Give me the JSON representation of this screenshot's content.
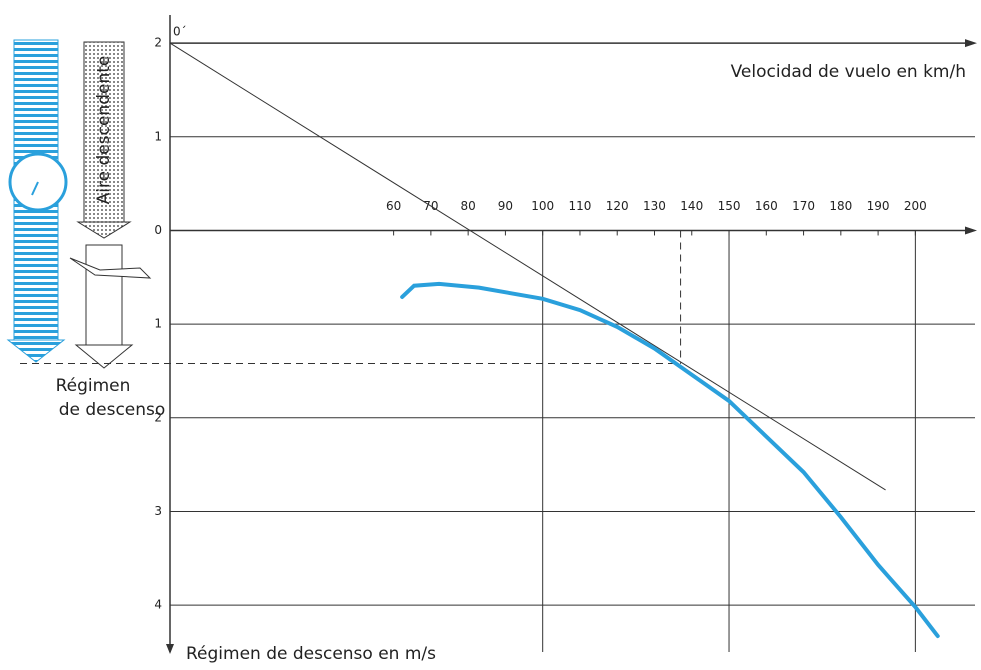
{
  "chart_data": {
    "type": "line",
    "x_label": "Velocidad de vuelo en km/h",
    "y_label": "Régimen de descenso en m/s",
    "origin_label": "0´",
    "air_label": "Aire descendente",
    "sink_label": [
      "Régimen",
      "de descenso"
    ],
    "x": [
      62.3,
      65.5,
      72.2,
      82.9,
      100,
      110,
      120,
      130,
      140,
      150,
      160,
      170,
      180,
      190,
      200,
      206
    ],
    "series": [
      {
        "color": "#2aa0dc",
        "values": [
          0.71,
          0.59,
          0.57,
          0.61,
          0.73,
          0.85,
          1.03,
          1.26,
          1.54,
          1.82,
          2.2,
          2.58,
          3.06,
          3.57,
          4.02,
          4.33
        ]
      }
    ],
    "tangent": {
      "x": [
        0,
        192
      ],
      "y": [
        -2,
        2.77
      ]
    },
    "optimum": {
      "x": 137,
      "y": 1.42
    },
    "xlim": [
      0,
      216
    ],
    "ylim": [
      -2.3,
      4.5
    ],
    "xticks": [
      60,
      70,
      80,
      90,
      100,
      110,
      120,
      130,
      140,
      150,
      160,
      170,
      180,
      190,
      200
    ],
    "yticks": [
      {
        "value": -2,
        "label": "2"
      },
      {
        "value": -1,
        "label": "1"
      },
      0,
      1,
      2,
      3,
      4
    ],
    "grid_x": [
      100,
      150,
      200
    ]
  }
}
